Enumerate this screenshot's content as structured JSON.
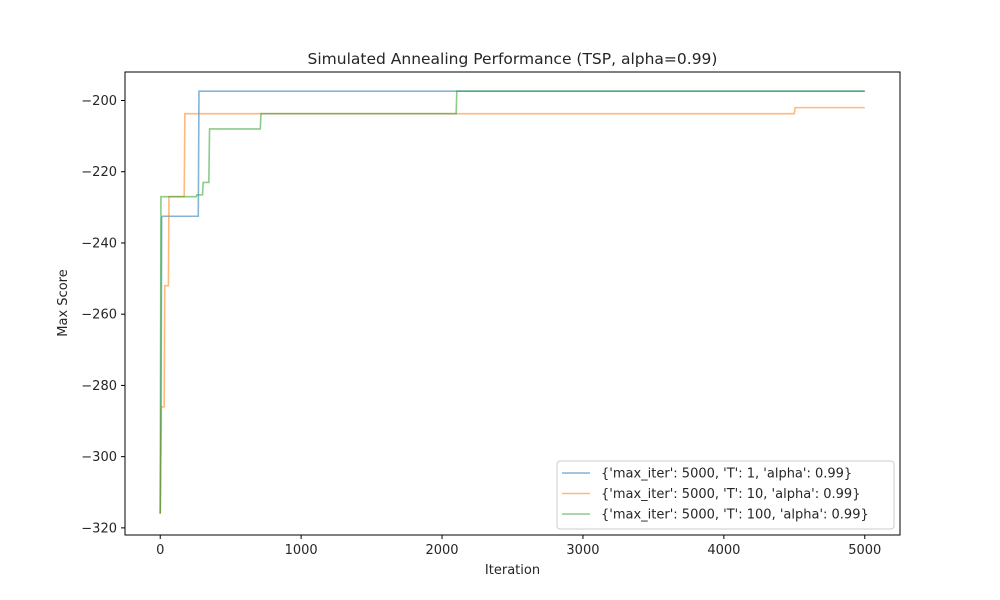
{
  "chart_data": {
    "type": "line",
    "title": "Simulated Annealing Performance (TSP, alpha=0.99)",
    "xlabel": "Iteration",
    "ylabel": "Max Score",
    "xlim": [
      -250,
      5250
    ],
    "ylim": [
      -322,
      -192
    ],
    "xticks": [
      0,
      1000,
      2000,
      3000,
      4000,
      5000
    ],
    "yticks": [
      -320,
      -300,
      -280,
      -260,
      -240,
      -220,
      -200
    ],
    "legend_position": "lower-right",
    "grid": false,
    "series": [
      {
        "name": "{'max_iter': 5000, 'T': 1, 'alpha': 0.99}",
        "color": "#1f77b4",
        "points": [
          [
            0,
            -316
          ],
          [
            3,
            -303
          ],
          [
            6,
            -285
          ],
          [
            10,
            -233
          ],
          [
            15,
            -232.5
          ],
          [
            270,
            -232.5
          ],
          [
            275,
            -197.4
          ],
          [
            5000,
            -197.4
          ]
        ]
      },
      {
        "name": "{'max_iter': 5000, 'T': 10, 'alpha': 0.99}",
        "color": "#ff7f0e",
        "points": [
          [
            0,
            -316
          ],
          [
            4,
            -300
          ],
          [
            8,
            -286
          ],
          [
            28,
            -286
          ],
          [
            32,
            -252
          ],
          [
            58,
            -252
          ],
          [
            62,
            -227
          ],
          [
            170,
            -227
          ],
          [
            175,
            -203.7
          ],
          [
            4500,
            -203.7
          ],
          [
            4505,
            -202
          ],
          [
            5000,
            -202
          ]
        ]
      },
      {
        "name": "{'max_iter': 5000, 'T': 100, 'alpha': 0.99}",
        "color": "#2ca02c",
        "points": [
          [
            0,
            -316
          ],
          [
            5,
            -227
          ],
          [
            255,
            -227
          ],
          [
            260,
            -226.5
          ],
          [
            300,
            -226.5
          ],
          [
            305,
            -223
          ],
          [
            345,
            -223
          ],
          [
            350,
            -208
          ],
          [
            710,
            -208
          ],
          [
            715,
            -203.7
          ],
          [
            2100,
            -203.7
          ],
          [
            2105,
            -197.4
          ],
          [
            5000,
            -197.4
          ]
        ]
      }
    ]
  }
}
